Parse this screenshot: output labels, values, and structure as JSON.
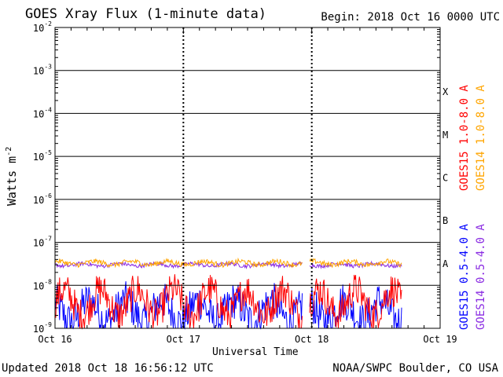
{
  "header": {
    "title": "GOES Xray Flux (1-minute data)",
    "begin_label": "Begin:",
    "begin_value": "2018 Oct 16 0000 UTC"
  },
  "footer": {
    "updated": "Updated 2018 Oct 18 16:56:12 UTC",
    "credit": "NOAA/SWPC Boulder, CO USA"
  },
  "chart_data": {
    "type": "line",
    "title": "GOES Xray Flux (1-minute data)",
    "xlabel": "Universal Time",
    "ylabel": "Watts m",
    "ylabel_exp": "-2",
    "yscale": "log",
    "ylim": [
      1e-09,
      0.01
    ],
    "xlim_days": [
      0,
      3
    ],
    "x_tick_labels": [
      "Oct 16",
      "Oct 17",
      "Oct 18",
      "Oct 19"
    ],
    "y_ticks": [
      {
        "base": "10",
        "exp": "-2"
      },
      {
        "base": "10",
        "exp": "-3"
      },
      {
        "base": "10",
        "exp": "-4"
      },
      {
        "base": "10",
        "exp": "-5"
      },
      {
        "base": "10",
        "exp": "-6"
      },
      {
        "base": "10",
        "exp": "-7"
      },
      {
        "base": "10",
        "exp": "-8"
      },
      {
        "base": "10",
        "exp": "-9"
      }
    ],
    "flare_classes": [
      "X",
      "M",
      "C",
      "B",
      "A"
    ],
    "grid": "horizontal",
    "data_end_day": 2.7,
    "series": [
      {
        "name": "GOES15 1.0-8.0 A",
        "color": "#ff0000",
        "level": 4e-09,
        "band": "long"
      },
      {
        "name": "GOES14 1.0-8.0 A",
        "color": "#ffa500",
        "level": 3.3e-08,
        "band": "long"
      },
      {
        "name": "GOES15 0.5-4.0 A",
        "color": "#0000ff",
        "level": 2.5e-09,
        "band": "short"
      },
      {
        "name": "GOES14 0.5-4.0 A",
        "color": "#8a2be2",
        "level": 3e-08,
        "band": "short"
      }
    ]
  }
}
